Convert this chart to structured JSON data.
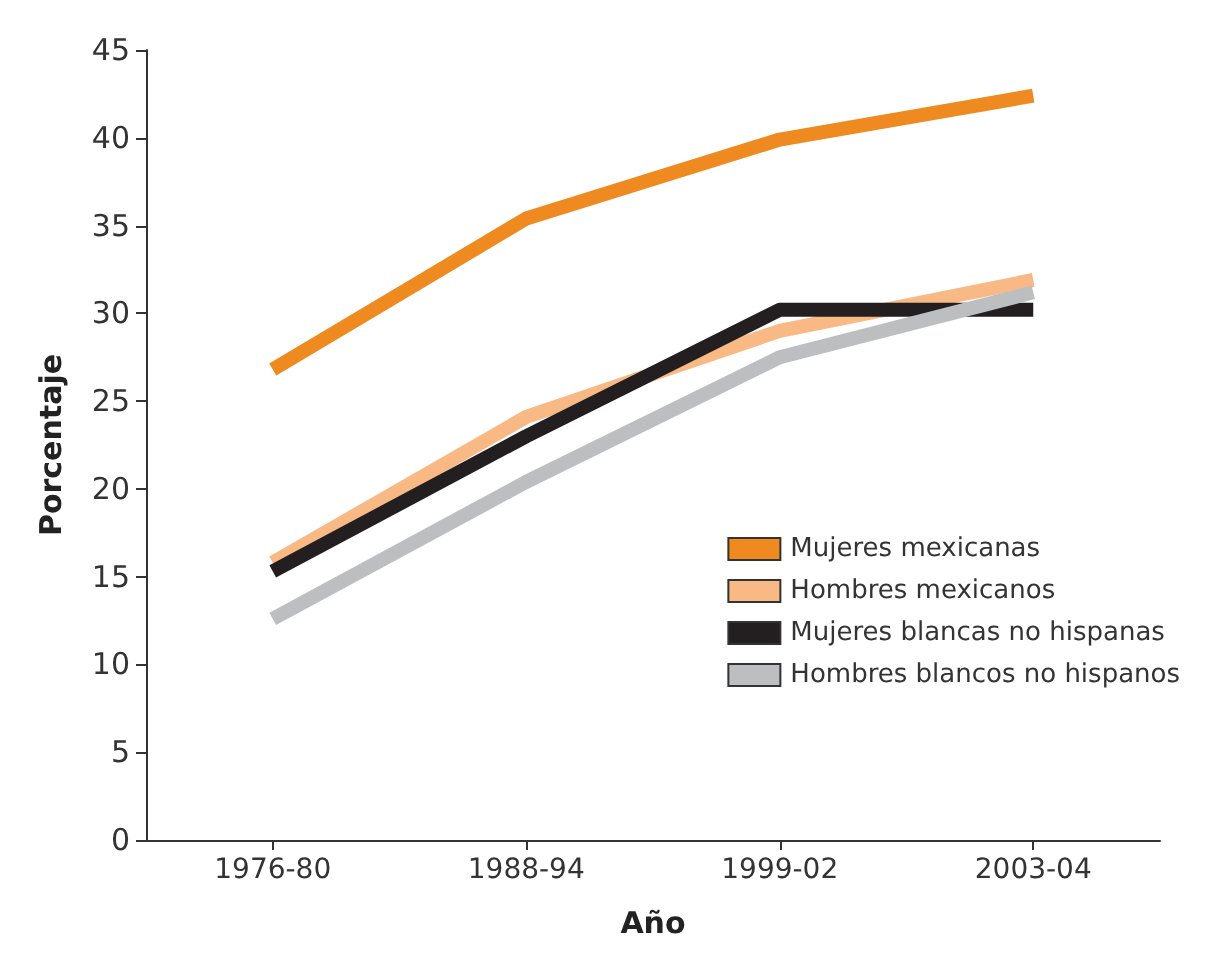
{
  "chart_data": {
    "type": "line",
    "xlabel": "Año",
    "ylabel": "Porcentaje",
    "categories": [
      "1976-80",
      "1988-94",
      "1999-02",
      "2003-04"
    ],
    "series": [
      {
        "name": "Mujeres mexicanas",
        "color": "#ee8a1f",
        "values": [
          26.8,
          35.4,
          39.9,
          42.4
        ]
      },
      {
        "name": "Hombres mexicanos",
        "color": "#f8b985",
        "values": [
          15.8,
          24.1,
          29.0,
          31.9
        ]
      },
      {
        "name": "Mujeres blancas no hispanas",
        "color": "#231f20",
        "values": [
          15.3,
          23.0,
          30.2,
          30.2
        ]
      },
      {
        "name": "Hombres blancos no hispanos",
        "color": "#bcbec0",
        "values": [
          12.6,
          20.4,
          27.5,
          31.2
        ]
      }
    ],
    "ylim": [
      0,
      45
    ],
    "yticks": [
      0,
      5,
      10,
      15,
      20,
      25,
      30,
      35,
      40,
      45
    ],
    "grid": false,
    "legend": "right",
    "marker": "none",
    "line_style": "solid"
  }
}
